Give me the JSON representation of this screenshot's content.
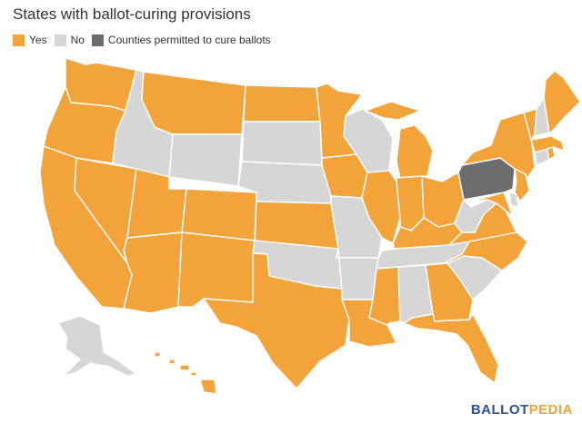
{
  "title": "States with ballot-curing provisions",
  "legend": [
    {
      "label": "Yes",
      "color": "#f2a33a"
    },
    {
      "label": "No",
      "color": "#d6d6d6"
    },
    {
      "label": "Counties permitted to cure ballots",
      "color": "#6d6d6d"
    }
  ],
  "colors": {
    "yes": "#f2a33a",
    "no": "#d6d6d6",
    "counties": "#6d6d6d"
  },
  "logo": {
    "part1": "BALLOT",
    "part2": "PEDIA"
  },
  "states": [
    {
      "name": "Washington",
      "status": "yes"
    },
    {
      "name": "Oregon",
      "status": "yes"
    },
    {
      "name": "California",
      "status": "yes"
    },
    {
      "name": "Nevada",
      "status": "yes"
    },
    {
      "name": "Idaho",
      "status": "no"
    },
    {
      "name": "Montana",
      "status": "yes"
    },
    {
      "name": "Wyoming",
      "status": "no"
    },
    {
      "name": "Utah",
      "status": "yes"
    },
    {
      "name": "Arizona",
      "status": "yes"
    },
    {
      "name": "Colorado",
      "status": "yes"
    },
    {
      "name": "New Mexico",
      "status": "yes"
    },
    {
      "name": "North Dakota",
      "status": "yes"
    },
    {
      "name": "South Dakota",
      "status": "no"
    },
    {
      "name": "Nebraska",
      "status": "no"
    },
    {
      "name": "Kansas",
      "status": "yes"
    },
    {
      "name": "Oklahoma",
      "status": "no"
    },
    {
      "name": "Texas",
      "status": "yes"
    },
    {
      "name": "Minnesota",
      "status": "yes"
    },
    {
      "name": "Iowa",
      "status": "yes"
    },
    {
      "name": "Missouri",
      "status": "no"
    },
    {
      "name": "Arkansas",
      "status": "no"
    },
    {
      "name": "Louisiana",
      "status": "yes"
    },
    {
      "name": "Wisconsin",
      "status": "no"
    },
    {
      "name": "Illinois",
      "status": "yes"
    },
    {
      "name": "Michigan",
      "status": "yes"
    },
    {
      "name": "Indiana",
      "status": "yes"
    },
    {
      "name": "Ohio",
      "status": "yes"
    },
    {
      "name": "Kentucky",
      "status": "yes"
    },
    {
      "name": "Tennessee",
      "status": "no"
    },
    {
      "name": "Mississippi",
      "status": "yes"
    },
    {
      "name": "Alabama",
      "status": "no"
    },
    {
      "name": "Georgia",
      "status": "yes"
    },
    {
      "name": "Florida",
      "status": "yes"
    },
    {
      "name": "South Carolina",
      "status": "no"
    },
    {
      "name": "North Carolina",
      "status": "yes"
    },
    {
      "name": "Virginia",
      "status": "yes"
    },
    {
      "name": "West Virginia",
      "status": "no"
    },
    {
      "name": "Pennsylvania",
      "status": "counties"
    },
    {
      "name": "New York",
      "status": "yes"
    },
    {
      "name": "Maryland",
      "status": "yes"
    },
    {
      "name": "Delaware",
      "status": "no"
    },
    {
      "name": "New Jersey",
      "status": "yes"
    },
    {
      "name": "Connecticut",
      "status": "no"
    },
    {
      "name": "Rhode Island",
      "status": "yes"
    },
    {
      "name": "Massachusetts",
      "status": "yes"
    },
    {
      "name": "Vermont",
      "status": "yes"
    },
    {
      "name": "New Hampshire",
      "status": "no"
    },
    {
      "name": "Maine",
      "status": "yes"
    },
    {
      "name": "Alaska",
      "status": "no"
    },
    {
      "name": "Hawaii",
      "status": "yes"
    }
  ]
}
